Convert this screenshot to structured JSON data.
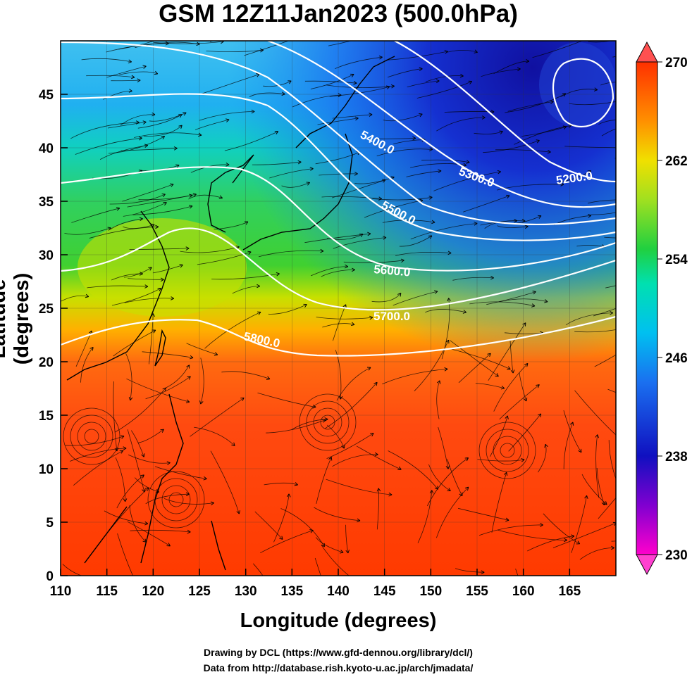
{
  "title": "GSM 12Z11Jan2023 (500.0hPa)",
  "xaxis": {
    "label": "Longitude (degrees)",
    "ticks": [
      "110",
      "115",
      "120",
      "125",
      "130",
      "135",
      "140",
      "145",
      "150",
      "155",
      "160",
      "165"
    ],
    "range": [
      110,
      170
    ]
  },
  "yaxis": {
    "label": "Latitude  (degrees)",
    "ticks": [
      "0",
      "5",
      "10",
      "15",
      "20",
      "25",
      "30",
      "35",
      "40",
      "45"
    ],
    "range": [
      0,
      50
    ]
  },
  "colorbar": {
    "min": 230,
    "max": 270,
    "labels": [
      "270",
      "262",
      "254",
      "246",
      "238",
      "230"
    ],
    "colors": [
      "#ff00ff",
      "#7b00d0",
      "#1010c0",
      "#1560f0",
      "#00b0f0",
      "#00e0d0",
      "#20d040",
      "#90e020",
      "#f0e000",
      "#ff9000",
      "#ff4000",
      "#ff3000"
    ]
  },
  "contours": [
    {
      "label": "5200.0"
    },
    {
      "label": "5300.0"
    },
    {
      "label": "5400.0"
    },
    {
      "label": "5500.0"
    },
    {
      "label": "5600.0"
    },
    {
      "label": "5700.0"
    },
    {
      "label": "5800.0"
    }
  ],
  "credits": {
    "line1": "Drawing by DCL (https://www.gfd-dennou.org/library/dcl/)",
    "line2": "Data from http://database.rish.kyoto-u.ac.jp/arch/jmadata/"
  }
}
